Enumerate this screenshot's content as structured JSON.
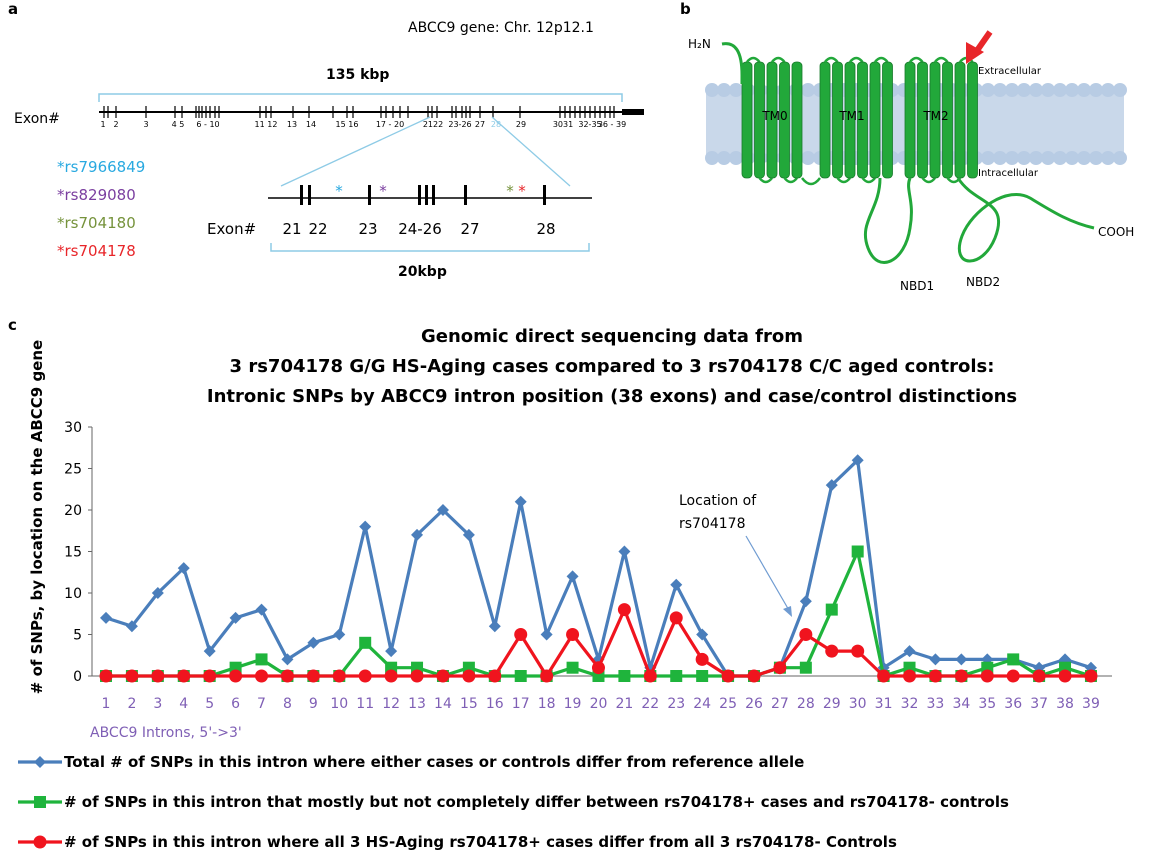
{
  "panel_a": {
    "letter": "a",
    "gene_title": "ABCC9 gene: Chr. 12p12.1",
    "span_label": "135 kbp",
    "exon_label": "Exon#",
    "exon_ticks": [
      "1",
      "2",
      "3",
      "4 5",
      "6 - 10",
      "11 12",
      "13",
      "14",
      "15 16",
      "17 - 20",
      "2122",
      "23-26",
      "27",
      "28",
      "29",
      "3031",
      "32-35",
      "36 - 39"
    ],
    "snps": [
      {
        "label": "*rs7966849",
        "color": "#29a9e0"
      },
      {
        "label": "*rs829080",
        "color": "#7b3fa0"
      },
      {
        "label": "*rs704180",
        "color": "#76933c"
      },
      {
        "label": "*rs704178",
        "color": "#e8262a"
      }
    ],
    "zoom_exon_label": "Exon#",
    "zoom_exons": [
      "21",
      "22",
      "23",
      "24-26",
      "27",
      "28"
    ],
    "zoom_span_label": "20kbp"
  },
  "panel_b": {
    "letter": "b",
    "n_terminus": "H₂N",
    "c_terminus": "COOH",
    "domains": [
      "TM0",
      "TM1",
      "TM2"
    ],
    "extracellular": "Extracellular",
    "intracellular": "Intracellular",
    "nbd1": "NBD1",
    "nbd2": "NBD2",
    "arrow_color": "#e8262a",
    "protein_color": "#22a83a"
  },
  "panel_c": {
    "letter": "c"
  },
  "chart_data": {
    "type": "line",
    "title": [
      "Genomic direct sequencing data from",
      "3 rs704178 G/G HS-Aging cases compared to 3 rs704178 C/C aged controls:",
      "Intronic SNPs by ABCC9 intron position (38 exons) and case/control distinctions"
    ],
    "ylabel": "# of SNPs, by location on the ABCC9 gene",
    "xlabel": "ABCC9 Introns, 5'->3'",
    "ylim": [
      0,
      30
    ],
    "yticks": [
      0,
      5,
      10,
      15,
      20,
      25,
      30
    ],
    "categories": [
      "1",
      "2",
      "3",
      "4",
      "5",
      "6",
      "7",
      "8",
      "9",
      "10",
      "11",
      "12",
      "13",
      "14",
      "15",
      "16",
      "17",
      "18",
      "19",
      "20",
      "21",
      "22",
      "23",
      "24",
      "25",
      "26",
      "27",
      "28",
      "29",
      "30",
      "31",
      "32",
      "33",
      "34",
      "35",
      "36",
      "37",
      "38",
      "39"
    ],
    "annotation": [
      "Location of",
      "rs704178"
    ],
    "series": [
      {
        "name": "Total # of SNPs in this intron where either cases or controls differ from reference allele",
        "color": "#4a7ebb",
        "marker": "diamond",
        "values": [
          7,
          6,
          10,
          13,
          3,
          7,
          8,
          2,
          4,
          5,
          18,
          3,
          17,
          20,
          17,
          6,
          21,
          5,
          12,
          2,
          15,
          1,
          11,
          5,
          0,
          0,
          1,
          9,
          23,
          26,
          1,
          3,
          2,
          2,
          2,
          2,
          1,
          2,
          1
        ]
      },
      {
        "name": "# of SNPs in this intron that mostly but not completely differ between rs704178+ cases and rs704178- controls",
        "color": "#1fb43c",
        "marker": "square",
        "values": [
          0,
          0,
          0,
          0,
          0,
          1,
          2,
          0,
          0,
          0,
          4,
          1,
          1,
          0,
          1,
          0,
          0,
          0,
          1,
          0,
          0,
          0,
          0,
          0,
          0,
          0,
          1,
          1,
          8,
          15,
          0,
          1,
          0,
          0,
          1,
          2,
          0,
          1,
          0
        ]
      },
      {
        "name": "# of SNPs in this intron where all 3 HS-Aging rs704178+ cases differ from all 3 rs704178- Controls",
        "color": "#f0141e",
        "marker": "circle",
        "values": [
          0,
          0,
          0,
          0,
          0,
          0,
          0,
          0,
          0,
          0,
          0,
          0,
          0,
          0,
          0,
          0,
          5,
          0,
          5,
          1,
          8,
          0,
          7,
          2,
          0,
          0,
          1,
          5,
          3,
          3,
          0,
          0,
          0,
          0,
          0,
          0,
          0,
          0,
          0
        ]
      }
    ],
    "grid": false,
    "legend_position": "bottom"
  }
}
